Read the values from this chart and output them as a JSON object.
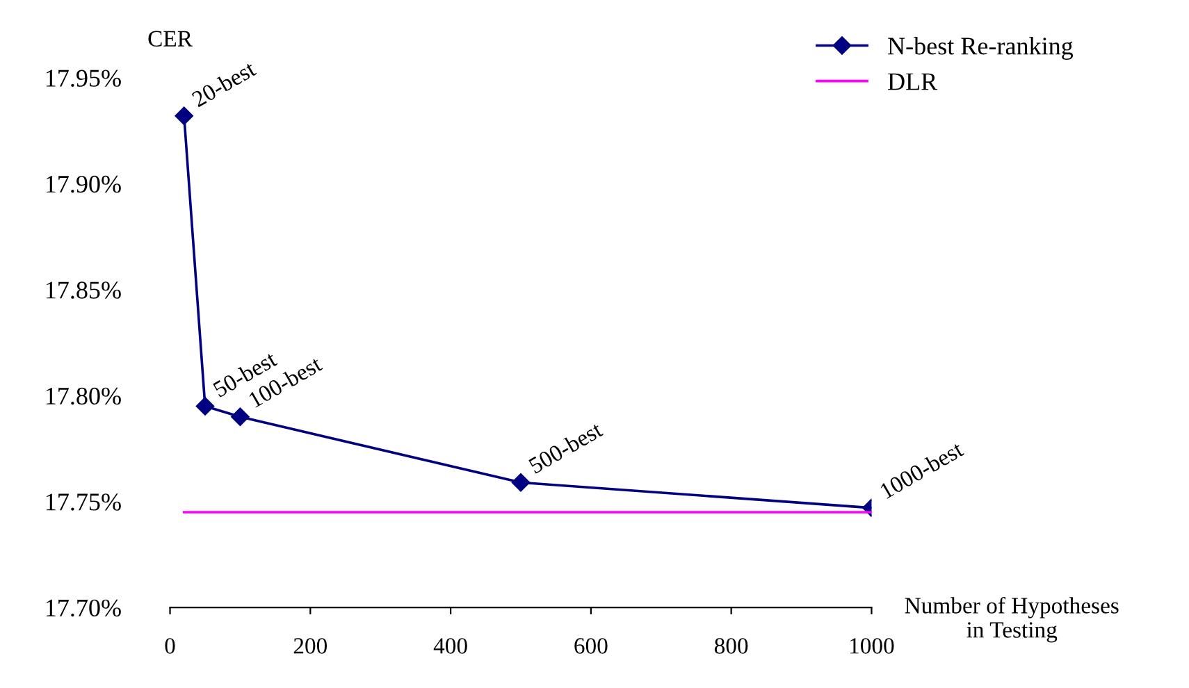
{
  "chart_data": {
    "type": "line",
    "ylabel": "CER",
    "xlabel": "Number of Hypotheses\nin Testing",
    "xlim": [
      0,
      1000
    ],
    "xticks": [
      0,
      200,
      400,
      600,
      800,
      1000
    ],
    "ylim": [
      17.7,
      17.95
    ],
    "yticks": [
      {
        "value": 17.7,
        "label": "17.70%"
      },
      {
        "value": 17.75,
        "label": "17.75%"
      },
      {
        "value": 17.8,
        "label": "17.80%"
      },
      {
        "value": 17.85,
        "label": "17.85%"
      },
      {
        "value": 17.9,
        "label": "17.90%"
      },
      {
        "value": 17.95,
        "label": "17.95%"
      }
    ],
    "series": [
      {
        "name": "N-best Re-ranking",
        "color": "#000080",
        "marker": "diamond",
        "x": [
          20,
          50,
          100,
          500,
          1000
        ],
        "values": [
          17.932,
          17.795,
          17.79,
          17.759,
          17.747
        ]
      },
      {
        "name": "DLR",
        "color": "#ff00ff",
        "marker": "none",
        "x": [
          20,
          1000
        ],
        "values": [
          17.745,
          17.745
        ]
      }
    ],
    "annotations": [
      {
        "text": "20-best",
        "x": 20,
        "y": 17.932
      },
      {
        "text": "50-best",
        "x": 50,
        "y": 17.795
      },
      {
        "text": "100-best",
        "x": 100,
        "y": 17.79
      },
      {
        "text": "500-best",
        "x": 500,
        "y": 17.759
      },
      {
        "text": "1000-best",
        "x": 1000,
        "y": 17.747
      }
    ],
    "legend": "top right",
    "grid": false
  }
}
